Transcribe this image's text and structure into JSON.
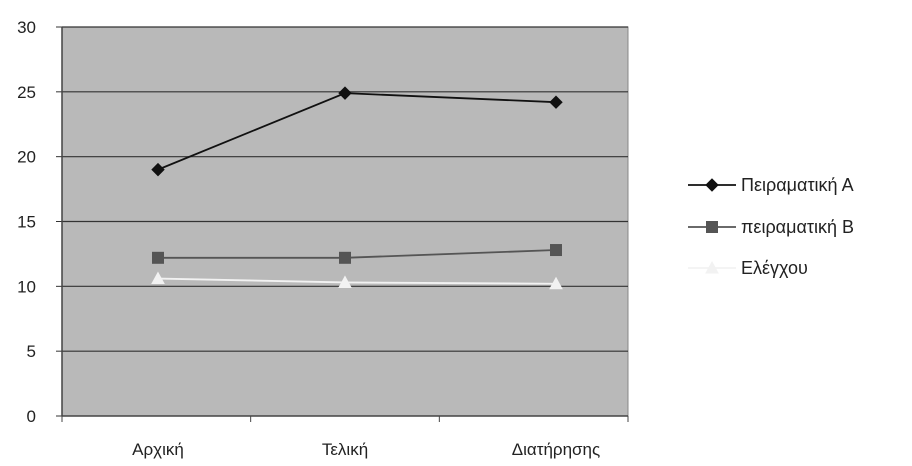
{
  "chart_data": {
    "type": "line",
    "title": "",
    "xlabel": "",
    "ylabel": "",
    "categories": [
      "Αρχική",
      "Τελική",
      "Διατήρησης"
    ],
    "ylim": [
      0,
      30
    ],
    "yticks": [
      0,
      5,
      10,
      15,
      20,
      25,
      30
    ],
    "grid": true,
    "legend_position": "right",
    "plot_background": "#b9b9b9",
    "series": [
      {
        "name": "Πειραματική Α",
        "values": [
          19.0,
          24.9,
          24.2
        ],
        "marker": "diamond",
        "color": "#111111"
      },
      {
        "name": "πειραματική Β",
        "values": [
          12.2,
          12.2,
          12.8
        ],
        "marker": "square",
        "color": "#555555"
      },
      {
        "name": "Ελέγχου",
        "values": [
          10.6,
          10.3,
          10.2
        ],
        "marker": "triangle",
        "color": "#f2f2f2"
      }
    ]
  }
}
